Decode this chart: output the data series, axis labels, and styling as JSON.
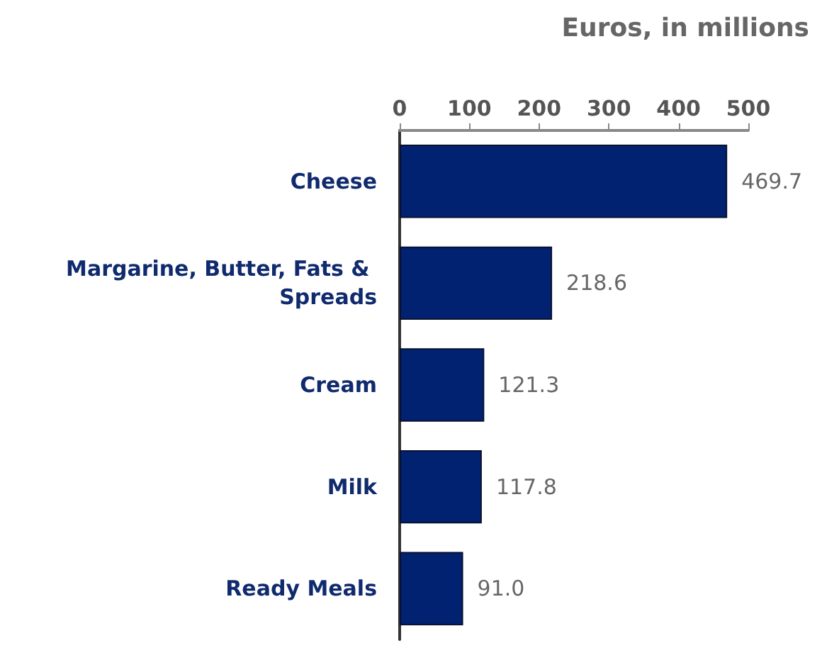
{
  "chart_data": {
    "type": "bar",
    "orientation": "horizontal",
    "xlabel": "Euros, in millions",
    "categories": [
      "Cheese",
      "Margarine, Butter, Fats & Spreads",
      "Cream",
      "Milk",
      "Ready Meals"
    ],
    "values": [
      469.7,
      218.6,
      121.3,
      117.8,
      91.0
    ],
    "value_labels": [
      "469.7",
      "218.6",
      "121.3",
      "117.8",
      "91.0"
    ],
    "color": "#002270",
    "xlim": [
      0,
      500
    ],
    "xticks": [
      0,
      100,
      200,
      300,
      400,
      500
    ],
    "grid": false
  }
}
